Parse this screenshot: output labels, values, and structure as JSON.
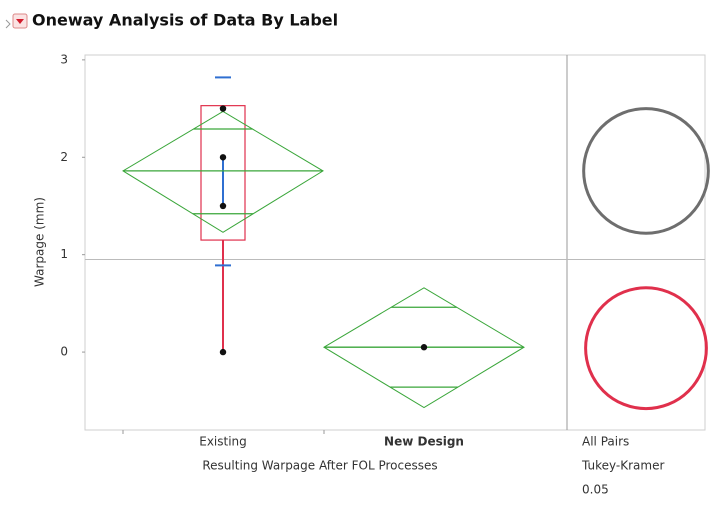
{
  "chart_data": {
    "type": "oneway",
    "title": "Oneway Analysis of Data By Label",
    "y_label": "Warpage (mm)",
    "x_label": "Resulting Warpage After FOL Processes",
    "ylim": [
      -0.8,
      3.05
    ],
    "yticks": [
      0,
      1,
      2,
      3
    ],
    "grand_mean": 0.95,
    "categories": [
      "Existing",
      "New Design"
    ],
    "groups": [
      {
        "points": [
          0,
          1.5,
          2,
          2.5
        ],
        "mean": 1.86,
        "ci": [
          1.23,
          2.47
        ],
        "overlap": [
          1.42,
          2.29
        ],
        "sd": [
          0.89,
          2.82
        ],
        "mean_error": [
          1.5,
          2.02
        ],
        "box": {
          "whisker_low": 0,
          "q1": 1.15,
          "q3": 2.53
        },
        "circle": {
          "center": 1.86,
          "radius": 0.64,
          "color": "#6e6e6e"
        },
        "label_color": "#222222"
      },
      {
        "points": [
          0.05
        ],
        "mean": 0.05,
        "ci": [
          -0.57,
          0.66
        ],
        "overlap": [
          -0.36,
          0.46
        ],
        "circle": {
          "center": 0.04,
          "radius": 0.62,
          "color": "#e0304c"
        },
        "label_color": "#e0304c"
      }
    ],
    "comparison": [
      "All Pairs",
      "Tukey-Kramer",
      "0.05"
    ]
  }
}
